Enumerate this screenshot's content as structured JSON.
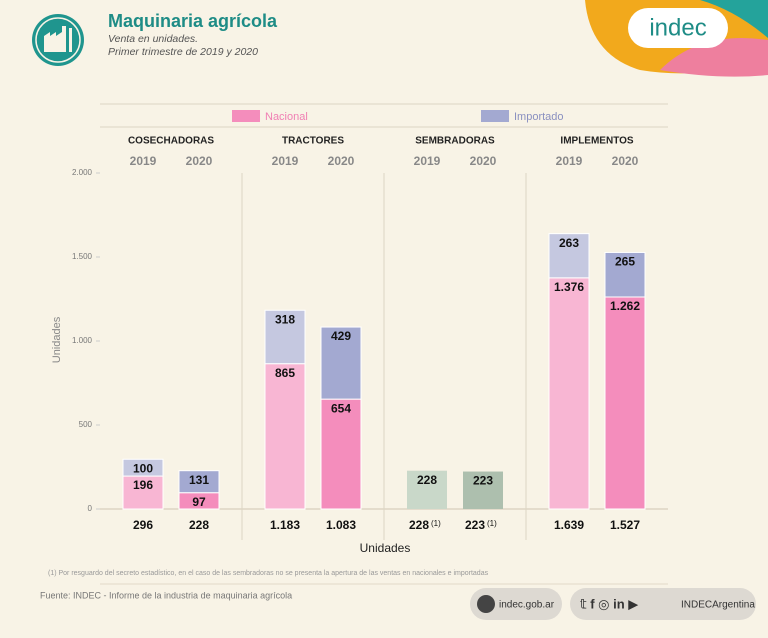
{
  "chart_data": {
    "type": "bar",
    "stacked": true,
    "title": "Maquinaria agrícola",
    "subtitle": [
      "Venta en unidades.",
      "Primer trimestre de 2019 y 2020"
    ],
    "y_label": "Unidades",
    "x_label": "Unidades",
    "groups": [
      "COSECHADORAS",
      "TRACTORES",
      "SEMBRADORAS",
      "IMPLEMENTOS"
    ],
    "categories": [
      "2019",
      "2020",
      "2019",
      "2020",
      "2019",
      "2020",
      "2019",
      "2020"
    ],
    "series": [
      {
        "name": "Nacional",
        "colors": [
          "#f8b6d3",
          "#f48dbc"
        ],
        "values": [
          196,
          97,
          865,
          654,
          null,
          null,
          1376,
          1262
        ],
        "value_labels": [
          "196",
          "97",
          "865",
          "654",
          null,
          null,
          "1.376",
          "1.262"
        ]
      },
      {
        "name": "Importado",
        "colors": [
          "#c5c8e0",
          "#a3a9d1"
        ],
        "values": [
          100,
          131,
          318,
          429,
          null,
          null,
          263,
          265
        ],
        "value_labels": [
          "100",
          "131",
          "318",
          "429",
          null,
          null,
          "263",
          "265"
        ]
      }
    ],
    "totals": {
      "colors": [
        "#c9d8c9",
        "#adbfae"
      ],
      "values": [
        296,
        228,
        1183,
        1083,
        228,
        223,
        1639,
        1527
      ],
      "value_labels": [
        "296",
        "228",
        "1.183",
        "1.083",
        "228",
        "223",
        "1.639",
        "1.527"
      ],
      "notes": [
        null,
        null,
        null,
        null,
        "(1)",
        "(1)",
        null,
        null
      ]
    },
    "ylim": [
      0,
      2000
    ],
    "yticks": [
      0,
      500,
      {
        "value": 1000,
        "label": "1.000"
      },
      {
        "value": 1500,
        "label": "1.500"
      },
      {
        "value": 2000,
        "label": "2.000"
      }
    ]
  },
  "footer": {
    "note": "(1) Por resguardo del secreto estadístico, en el caso de las sembradoras no se presenta la apertura de las ventas en nacionales e importadas",
    "source": "Fuente: INDEC - Informe de la industria de maquinaria agrícola",
    "web": "indec.gob.ar",
    "social": "INDECArgentina"
  },
  "logo": "indec"
}
